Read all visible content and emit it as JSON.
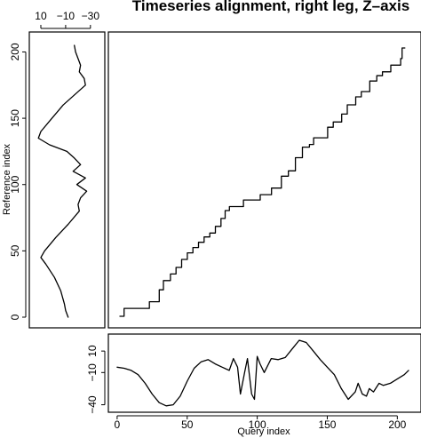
{
  "chart_data": {
    "type": "line",
    "title": "Timeseries alignment, right leg, Z–axis",
    "panels": {
      "alignment": {
        "type": "line",
        "xlim": [
          0,
          205
        ],
        "ylim": [
          0,
          205
        ],
        "x": [
          0,
          3,
          20,
          21,
          28,
          31,
          36,
          40,
          44,
          48,
          52,
          56,
          60,
          64,
          68,
          72,
          75,
          78,
          82,
          88,
          95,
          100,
          108,
          115,
          120,
          125,
          130,
          135,
          138,
          145,
          148,
          152,
          158,
          162,
          168,
          172,
          178,
          183,
          187,
          193,
          197,
          200,
          201,
          203
        ],
        "y": [
          0,
          6,
          6,
          11,
          20,
          27,
          32,
          37,
          43,
          48,
          52,
          56,
          60,
          63,
          68,
          74,
          80,
          83,
          83,
          88,
          88,
          92,
          97,
          106,
          110,
          120,
          128,
          130,
          135,
          135,
          143,
          147,
          153,
          160,
          166,
          170,
          178,
          182,
          185,
          190,
          190,
          195,
          203,
          203
        ]
      },
      "reference": {
        "type": "line",
        "orientation": "vertical",
        "xlim": [
          15,
          -38
        ],
        "ylim": [
          0,
          205
        ],
        "xticks": [
          10,
          -10,
          -30
        ],
        "tick_labels": [
          "10",
          "−10",
          "−30"
        ],
        "yticks": [
          0,
          50,
          100,
          150,
          200
        ],
        "ylabel": "Reference index",
        "index": [
          0,
          5,
          10,
          20,
          30,
          40,
          45,
          50,
          60,
          70,
          80,
          85,
          90,
          95,
          100,
          105,
          110,
          115,
          120,
          125,
          130,
          135,
          140,
          150,
          160,
          165,
          170,
          175,
          180,
          185,
          190,
          200,
          205
        ],
        "values": [
          -12,
          -10,
          -9,
          -6,
          -1,
          6,
          10,
          7,
          -2,
          -12,
          -21,
          -20,
          -22,
          -27,
          -19,
          -26,
          -16,
          -22,
          -17,
          -11,
          3,
          12,
          10,
          1,
          -8,
          -14,
          -20,
          -26,
          -25,
          -21,
          -22,
          -18,
          -17
        ]
      },
      "query": {
        "type": "line",
        "xlim": [
          -5,
          215
        ],
        "ylim": [
          -42,
          25
        ],
        "xticks": [
          0,
          50,
          100,
          150,
          200
        ],
        "yticks": [
          10,
          -10,
          -40
        ],
        "tick_labels": [
          "10",
          "−10",
          "−40"
        ],
        "xlabel": "Query index",
        "index": [
          0,
          5,
          10,
          15,
          20,
          25,
          30,
          35,
          40,
          45,
          50,
          55,
          60,
          65,
          70,
          75,
          80,
          83,
          86,
          88,
          91,
          93,
          96,
          98,
          100,
          102,
          105,
          110,
          115,
          120,
          125,
          130,
          135,
          140,
          145,
          150,
          155,
          160,
          165,
          170,
          172,
          175,
          178,
          180,
          183,
          187,
          190,
          195,
          200,
          205,
          208
        ],
        "values": [
          -5,
          -6,
          -8,
          -12,
          -20,
          -30,
          -38,
          -41,
          -40,
          -32,
          -18,
          -6,
          0,
          2,
          -2,
          -5,
          -8,
          3,
          -5,
          -30,
          -10,
          3,
          -30,
          -35,
          5,
          -2,
          -10,
          3,
          2,
          4,
          12,
          20,
          18,
          10,
          2,
          -5,
          -12,
          -25,
          -35,
          -28,
          -20,
          -30,
          -32,
          -25,
          -28,
          -20,
          -22,
          -20,
          -16,
          -12,
          -8
        ]
      }
    }
  }
}
